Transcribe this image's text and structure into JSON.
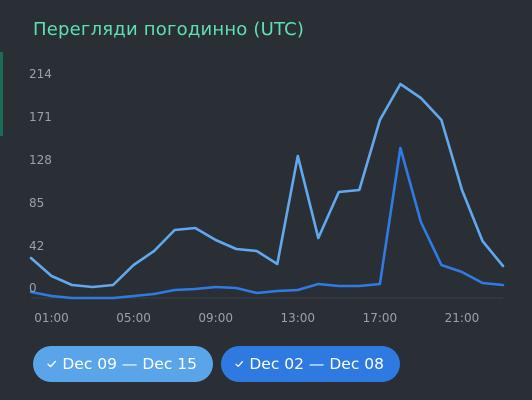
{
  "title": "Перегляди погодинно (UTC)",
  "colors": {
    "title": "#5fe0b2",
    "series_1": "#62a8ee",
    "series_2": "#2f7be3",
    "background": "#2a2e35"
  },
  "legend": [
    {
      "label": "Dec 09 — Dec 15",
      "icon": "check-icon"
    },
    {
      "label": "Dec 02 — Dec 08",
      "icon": "check-icon"
    }
  ],
  "chart_data": {
    "type": "line",
    "title": "Перегляди погодинно (UTC)",
    "x": [
      0,
      1,
      2,
      3,
      4,
      5,
      6,
      7,
      8,
      9,
      10,
      11,
      12,
      13,
      14,
      15,
      16,
      17,
      18,
      19,
      20,
      21,
      22,
      23
    ],
    "x_tick_labels": [
      "01:00",
      "05:00",
      "09:00",
      "13:00",
      "17:00",
      "21:00"
    ],
    "x_tick_positions": [
      1,
      5,
      9,
      13,
      17,
      21
    ],
    "y_ticks": [
      0,
      42,
      85,
      128,
      171,
      214
    ],
    "ylim": [
      0,
      214
    ],
    "grid": false,
    "legend_placement": "bottom",
    "series": [
      {
        "name": "Dec 09 — Dec 15",
        "values": [
          40,
          22,
          13,
          11,
          13,
          33,
          47,
          68,
          70,
          58,
          49,
          47,
          34,
          142,
          60,
          106,
          108,
          178,
          214,
          200,
          178,
          108,
          57,
          32
        ]
      },
      {
        "name": "Dec 02 — Dec 08",
        "values": [
          6,
          2,
          0,
          0,
          0,
          2,
          4,
          8,
          9,
          11,
          10,
          5,
          7,
          8,
          14,
          12,
          12,
          14,
          150,
          76,
          33,
          26,
          15,
          13
        ]
      }
    ]
  }
}
